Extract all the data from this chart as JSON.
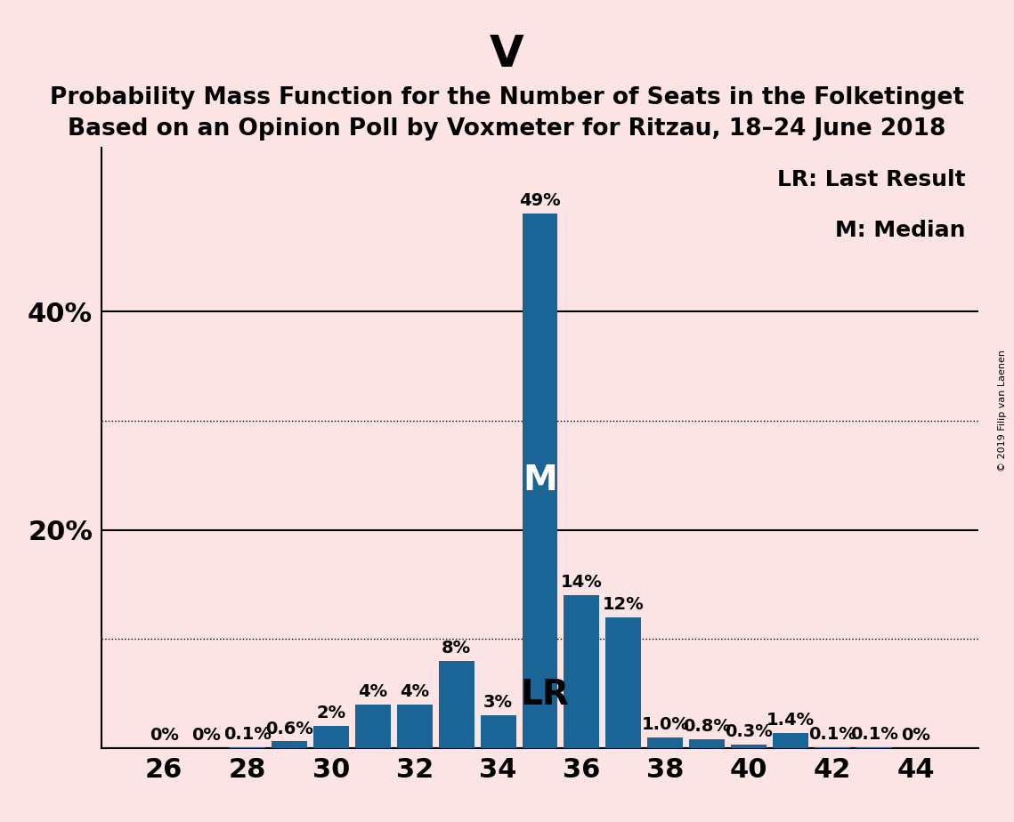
{
  "title": "V",
  "subtitle1": "Probability Mass Function for the Number of Seats in the Folketinget",
  "subtitle2": "Based on an Opinion Poll by Voxmeter for Ritzau, 18–24 June 2018",
  "copyright": "© 2019 Filip van Laenen",
  "background_color": "#fce4e4",
  "bar_color": "#1a6496",
  "seats": [
    26,
    27,
    28,
    29,
    30,
    31,
    32,
    33,
    34,
    35,
    36,
    37,
    38,
    39,
    40,
    41,
    42,
    43,
    44
  ],
  "probabilities": [
    0.0,
    0.0,
    0.1,
    0.6,
    2.0,
    4.0,
    4.0,
    8.0,
    3.0,
    49.0,
    14.0,
    12.0,
    1.0,
    0.8,
    0.3,
    1.4,
    0.1,
    0.1,
    0.0
  ],
  "labels": [
    "0%",
    "0%",
    "0.1%",
    "0.6%",
    "2%",
    "4%",
    "4%",
    "8%",
    "3%",
    "49%",
    "14%",
    "12%",
    "1.0%",
    "0.8%",
    "0.3%",
    "1.4%",
    "0.1%",
    "0.1%",
    "0%"
  ],
  "median_seat": 35,
  "lr_seat": 34,
  "ylim": [
    0,
    55
  ],
  "solid_yticks": [
    0,
    20,
    40
  ],
  "dotted_yticks": [
    10,
    30
  ],
  "labeled_yticks": [
    20,
    40
  ],
  "labeled_ytick_labels": [
    "20%",
    "40%"
  ],
  "legend_text1": "LR: Last Result",
  "legend_text2": "M: Median",
  "title_fontsize": 36,
  "subtitle_fontsize": 19,
  "bar_label_fontsize": 14,
  "axis_tick_fontsize": 22,
  "legend_fontsize": 18,
  "M_label_fontsize": 28,
  "LR_label_fontsize": 28
}
